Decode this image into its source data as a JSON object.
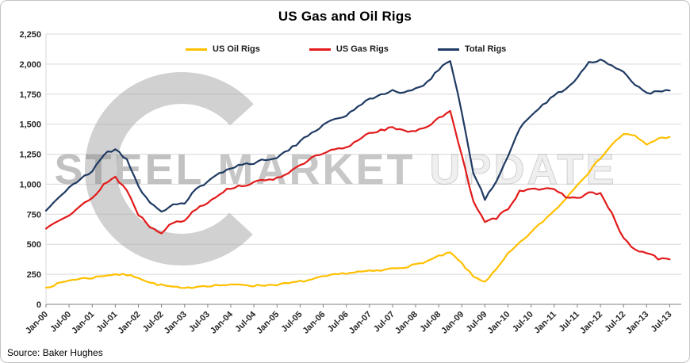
{
  "title": "US Gas and Oil Rigs",
  "source": "Source: Baker Hughes",
  "watermark": {
    "word1": "STEEL",
    "word2": "MARKET",
    "word3": "UPDATE"
  },
  "chart_data": {
    "type": "line",
    "title": "US Gas and Oil Rigs",
    "xlabel": "",
    "ylabel": "",
    "ylim": [
      0,
      2250
    ],
    "grid": true,
    "legend_position": "top",
    "y_ticks": [
      0,
      250,
      500,
      750,
      1000,
      1250,
      1500,
      1750,
      2000,
      2250
    ],
    "y_tick_labels": [
      "0",
      "250",
      "500",
      "750",
      "1,000",
      "1,250",
      "1,500",
      "1,750",
      "2,000",
      "2,250"
    ],
    "x_ticks": [
      2000,
      2000.5,
      2001,
      2001.5,
      2002,
      2002.5,
      2003,
      2003.5,
      2004,
      2004.5,
      2005,
      2005.5,
      2006,
      2006.5,
      2007,
      2007.5,
      2008,
      2008.5,
      2009,
      2009.5,
      2010,
      2010.5,
      2011,
      2011.5,
      2012,
      2012.5,
      2013,
      2013.5
    ],
    "x_tick_labels": [
      "Jan-00",
      "Jul-00",
      "Jan-01",
      "Jul-01",
      "Jan-02",
      "Jul-02",
      "Jan-03",
      "Jul-03",
      "Jan-04",
      "Jul-04",
      "Jan-05",
      "Jul-05",
      "Jan-06",
      "Jul-06",
      "Jan-07",
      "Jul-07",
      "Jan-08",
      "Jul-08",
      "Jan-09",
      "Jul-09",
      "Jan-10",
      "Jul-10",
      "Jan-11",
      "Jul-11",
      "Jan-12",
      "Jul-12",
      "Jan-13",
      "Jul-13"
    ],
    "x": [
      2000,
      2000.25,
      2000.5,
      2000.75,
      2001,
      2001.25,
      2001.5,
      2001.75,
      2002,
      2002.25,
      2002.5,
      2002.75,
      2003,
      2003.25,
      2003.5,
      2003.75,
      2004,
      2004.25,
      2004.5,
      2004.75,
      2005,
      2005.25,
      2005.5,
      2005.75,
      2006,
      2006.25,
      2006.5,
      2006.75,
      2007,
      2007.25,
      2007.5,
      2007.75,
      2008,
      2008.25,
      2008.5,
      2008.75,
      2009,
      2009.25,
      2009.5,
      2009.75,
      2010,
      2010.25,
      2010.5,
      2010.75,
      2011,
      2011.25,
      2011.5,
      2011.75,
      2012,
      2012.25,
      2012.5,
      2012.75,
      2013,
      2013.25,
      2013.5
    ],
    "series": [
      {
        "name": "US Oil Rigs",
        "color": "#FFC000",
        "values": [
          140,
          170,
          200,
          215,
          220,
          240,
          250,
          245,
          225,
          180,
          160,
          145,
          130,
          150,
          155,
          160,
          160,
          165,
          155,
          160,
          165,
          175,
          190,
          205,
          230,
          245,
          260,
          270,
          275,
          280,
          300,
          310,
          330,
          360,
          400,
          430,
          340,
          230,
          190,
          290,
          420,
          510,
          600,
          690,
          780,
          880,
          1000,
          1100,
          1220,
          1330,
          1420,
          1400,
          1330,
          1380,
          1395
        ]
      },
      {
        "name": "US Gas Rigs",
        "color": "#E21A1A",
        "values": [
          630,
          700,
          750,
          820,
          880,
          1000,
          1060,
          950,
          750,
          650,
          600,
          680,
          700,
          800,
          850,
          920,
          970,
          990,
          1010,
          1040,
          1050,
          1100,
          1150,
          1220,
          1250,
          1290,
          1300,
          1370,
          1430,
          1450,
          1470,
          1440,
          1450,
          1480,
          1550,
          1600,
          1250,
          850,
          680,
          720,
          800,
          940,
          970,
          960,
          950,
          900,
          880,
          930,
          920,
          750,
          550,
          450,
          430,
          380,
          375
        ]
      },
      {
        "name": "Total Rigs",
        "color": "#1F3A63",
        "values": [
          780,
          885,
          965,
          1045,
          1110,
          1250,
          1290,
          1210,
          985,
          840,
          770,
          835,
          840,
          960,
          1015,
          1090,
          1140,
          1165,
          1175,
          1210,
          1225,
          1285,
          1350,
          1435,
          1490,
          1545,
          1570,
          1650,
          1715,
          1740,
          1780,
          1760,
          1790,
          1850,
          1960,
          2030,
          1600,
          1090,
          880,
          1020,
          1230,
          1460,
          1580,
          1660,
          1740,
          1790,
          1890,
          2020,
          2030,
          1980,
          1940,
          1830,
          1760,
          1770,
          1780
        ]
      }
    ]
  }
}
